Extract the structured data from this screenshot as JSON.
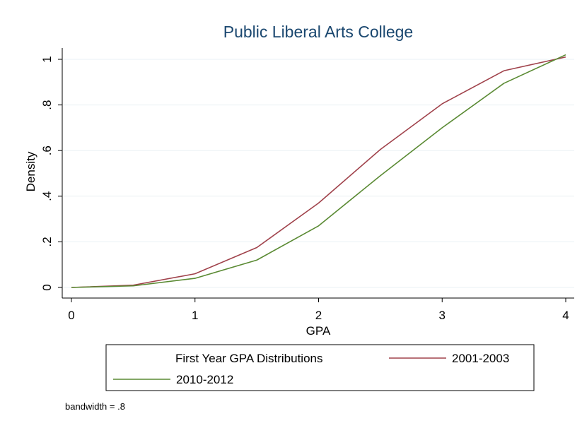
{
  "chart_data": {
    "type": "line",
    "title": "Public Liberal Arts College",
    "xlabel": "GPA",
    "ylabel": "Density",
    "xlim": [
      0,
      4
    ],
    "ylim": [
      0,
      1
    ],
    "x_ticks": [
      0,
      1,
      2,
      3,
      4
    ],
    "x_tick_labels": [
      "0",
      "1",
      "2",
      "3",
      "4"
    ],
    "y_ticks": [
      0,
      0.2,
      0.4,
      0.6,
      0.8,
      1
    ],
    "y_tick_labels": [
      "0",
      ".2",
      ".4",
      ".6",
      ".8",
      "1"
    ],
    "grid": true,
    "legend": {
      "title": "First Year GPA Distributions",
      "placement": "bottom"
    },
    "note": "bandwidth = .8",
    "x": [
      0,
      0.5,
      1,
      1.5,
      2,
      2.5,
      3,
      3.5,
      4
    ],
    "series": [
      {
        "name": "2001-2003",
        "color": "#a0424b",
        "values": [
          0,
          0.01,
          0.06,
          0.175,
          0.37,
          0.605,
          0.805,
          0.95,
          1.01
        ]
      },
      {
        "name": "2010-2012",
        "color": "#5a8a33",
        "values": [
          0,
          0.007,
          0.04,
          0.12,
          0.27,
          0.49,
          0.7,
          0.895,
          1.02
        ]
      }
    ]
  }
}
